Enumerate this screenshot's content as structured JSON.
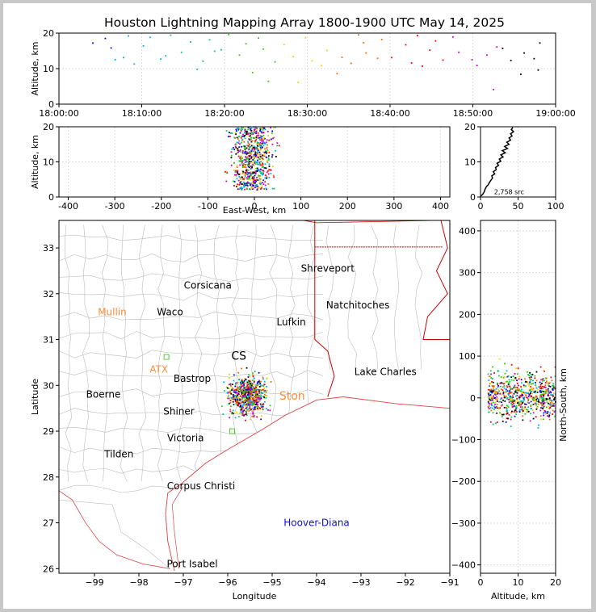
{
  "title": "Houston Lightning Mapping Array 1800-1900 UTC May 14, 2025",
  "colors": {
    "axis": "#000000",
    "grid": "#dddddd",
    "counties": "#bbbbbb",
    "state_lines": "#cc0000",
    "coast": "#dd4444",
    "city": "#000000",
    "station_orange": "#ff8c3a",
    "station_green": "#55cc33",
    "storm_label_blue": "#1111cc",
    "source_palette": [
      "#0000ff",
      "#00aaff",
      "#00cc66",
      "#33cc00",
      "#ffcc00",
      "#ff6600",
      "#ff0000",
      "#cc00cc",
      "#000000"
    ]
  },
  "chart_data": [
    {
      "id": "time_altitude",
      "type": "scatter",
      "xlabel": "",
      "ylabel": "Altitude, km",
      "x_tick_labels": [
        "18:00:00",
        "18:10:00",
        "18:20:00",
        "18:30:00",
        "18:40:00",
        "18:50:00",
        "19:00:00"
      ],
      "x_ticks_minutes": [
        0,
        10,
        20,
        30,
        40,
        50,
        60
      ],
      "xlim_minutes": [
        0,
        60
      ],
      "ylim": [
        0,
        20
      ],
      "y_ticks": [
        0,
        10,
        20
      ],
      "grid": true,
      "points": [
        [
          4.1,
          17.2
        ],
        [
          5.6,
          18.5
        ],
        [
          6.3,
          15.8
        ],
        [
          7.8,
          13.1
        ],
        [
          8.4,
          19.2
        ],
        [
          9.1,
          11.3
        ],
        [
          10.2,
          16.4
        ],
        [
          11.0,
          18.8
        ],
        [
          12.3,
          12.7
        ],
        [
          13.5,
          19.4
        ],
        [
          14.8,
          14.6
        ],
        [
          15.9,
          17.5
        ],
        [
          16.7,
          9.8
        ],
        [
          17.4,
          12.1
        ],
        [
          18.2,
          18.1
        ],
        [
          19.6,
          15.3
        ],
        [
          20.5,
          19.6
        ],
        [
          21.8,
          13.8
        ],
        [
          22.6,
          17.0
        ],
        [
          23.4,
          8.9
        ],
        [
          24.7,
          15.5
        ],
        [
          25.3,
          6.4
        ],
        [
          26.1,
          11.9
        ],
        [
          27.2,
          16.8
        ],
        [
          28.3,
          13.4
        ],
        [
          28.9,
          6.1
        ],
        [
          29.8,
          18.7
        ],
        [
          30.6,
          12.2
        ],
        [
          31.7,
          10.8
        ],
        [
          32.4,
          15.1
        ],
        [
          33.6,
          8.6
        ],
        [
          34.2,
          13.2
        ],
        [
          35.3,
          11.5
        ],
        [
          36.8,
          17.3
        ],
        [
          37.1,
          14.4
        ],
        [
          38.5,
          12.9
        ],
        [
          39.0,
          18.2
        ],
        [
          40.2,
          13.1
        ],
        [
          41.9,
          16.7
        ],
        [
          42.6,
          11.6
        ],
        [
          43.3,
          19.3
        ],
        [
          44.8,
          15.2
        ],
        [
          45.5,
          17.8
        ],
        [
          46.4,
          12.4
        ],
        [
          47.6,
          18.9
        ],
        [
          48.3,
          14.6
        ],
        [
          49.9,
          12.5
        ],
        [
          50.5,
          10.9
        ],
        [
          51.7,
          13.8
        ],
        [
          52.5,
          4.1
        ],
        [
          53.6,
          15.7
        ],
        [
          54.6,
          12.3
        ],
        [
          55.8,
          8.4
        ],
        [
          56.2,
          14.4
        ],
        [
          57.4,
          12.8
        ],
        [
          57.9,
          9.6
        ],
        [
          58.1,
          17.2
        ],
        [
          6.8,
          12.5
        ],
        [
          12.9,
          13.6
        ],
        [
          18.8,
          14.9
        ],
        [
          24.1,
          18.6
        ],
        [
          36.2,
          19.5
        ],
        [
          43.9,
          10.7
        ],
        [
          52.9,
          16.1
        ]
      ]
    },
    {
      "id": "east_west_altitude",
      "type": "scatter",
      "xlabel": "East-West, km",
      "ylabel": "Altitude, km",
      "x_ticks": [
        -400,
        -300,
        -200,
        -100,
        0,
        100,
        200,
        300,
        400
      ],
      "xlim": [
        -420,
        420
      ],
      "ylim": [
        0,
        20
      ],
      "y_ticks": [
        0,
        10,
        20
      ],
      "grid": true,
      "cluster": {
        "center_x": -5,
        "spread_x": 22,
        "min_alt": 2,
        "max_alt": 20,
        "count": 700
      }
    },
    {
      "id": "altitude_histogram",
      "type": "line",
      "xlim": [
        0,
        100
      ],
      "ylim": [
        0,
        20
      ],
      "x_ticks": [
        0,
        50,
        100
      ],
      "y_ticks": [
        0,
        10,
        20
      ],
      "annotation": "2,758 src",
      "curve": [
        [
          0,
          0.2
        ],
        [
          3,
          0.8
        ],
        [
          5,
          1.5
        ],
        [
          6,
          2.2
        ],
        [
          8,
          3.0
        ],
        [
          10,
          3.4
        ],
        [
          12,
          4.2
        ],
        [
          14,
          4.8
        ],
        [
          16,
          5.4
        ],
        [
          15,
          6.0
        ],
        [
          19,
          6.6
        ],
        [
          17,
          7.2
        ],
        [
          21,
          7.8
        ],
        [
          20,
          8.4
        ],
        [
          24,
          9.0
        ],
        [
          22,
          9.6
        ],
        [
          27,
          10.2
        ],
        [
          25,
          10.8
        ],
        [
          30,
          11.4
        ],
        [
          27,
          12.0
        ],
        [
          33,
          12.6
        ],
        [
          29,
          13.2
        ],
        [
          36,
          13.8
        ],
        [
          32,
          14.4
        ],
        [
          38,
          15.0
        ],
        [
          35,
          15.6
        ],
        [
          40,
          16.2
        ],
        [
          38,
          16.8
        ],
        [
          42,
          17.4
        ],
        [
          40,
          18.0
        ],
        [
          44,
          18.6
        ],
        [
          41,
          19.2
        ],
        [
          43,
          19.8
        ]
      ]
    },
    {
      "id": "plan_view",
      "type": "scatter",
      "xlabel": "Longitude",
      "ylabel": "Latitude",
      "x_ticks": [
        -99,
        -98,
        -97,
        -96,
        -95,
        -94,
        -93,
        -92,
        -91
      ],
      "xlim": [
        -99.8,
        -91.0
      ],
      "y_ticks": [
        26,
        27,
        28,
        29,
        30,
        31,
        32,
        33
      ],
      "ylim": [
        25.9,
        33.6
      ],
      "cluster": {
        "center_lon": -95.55,
        "center_lat": 29.78,
        "spread_lon": 0.2,
        "spread_lat": 0.2,
        "count": 700
      },
      "cities": [
        {
          "name": "Shreveport",
          "lon": -93.75,
          "lat": 32.55
        },
        {
          "name": "Corsicana",
          "lon": -96.45,
          "lat": 32.18
        },
        {
          "name": "Natchitoches",
          "lon": -93.07,
          "lat": 31.75
        },
        {
          "name": "Mullin",
          "lon": -98.6,
          "lat": 31.6,
          "color": "orange"
        },
        {
          "name": "Waco",
          "lon": -97.3,
          "lat": 31.6
        },
        {
          "name": "Lufkin",
          "lon": -94.57,
          "lat": 31.38
        },
        {
          "name": "ATX",
          "lon": -97.55,
          "lat": 30.35,
          "color": "orange"
        },
        {
          "name": "Bastrop",
          "lon": -96.8,
          "lat": 30.15
        },
        {
          "name": "Lake Charles",
          "lon": -92.45,
          "lat": 30.3
        },
        {
          "name": "Boerne",
          "lon": -98.8,
          "lat": 29.8
        },
        {
          "name": "Shiner",
          "lon": -97.1,
          "lat": 29.43
        },
        {
          "name": "Victoria",
          "lon": -96.95,
          "lat": 28.85
        },
        {
          "name": "Tilden",
          "lon": -98.45,
          "lat": 28.5
        },
        {
          "name": "Corpus Christi",
          "lon": -96.6,
          "lat": 27.8
        },
        {
          "name": "Hoover-Diana",
          "lon": -94.0,
          "lat": 27.0,
          "color": "blue"
        },
        {
          "name": "Port Isabel",
          "lon": -96.8,
          "lat": 26.1
        }
      ],
      "stations": [
        {
          "lon": -97.38,
          "lat": 30.62,
          "color": "green"
        },
        {
          "lon": -95.9,
          "lat": 29.0,
          "color": "green"
        }
      ],
      "storm_labels": [
        {
          "text": "CS",
          "lon": -95.75,
          "lat": 30.65,
          "color": "#000000"
        },
        {
          "text": "Ston",
          "lon": -94.55,
          "lat": 29.78,
          "color": "orange"
        }
      ]
    },
    {
      "id": "altitude_north_south",
      "type": "scatter",
      "xlabel": "Altitude, km",
      "ylabel": "North-South, km",
      "x_ticks": [
        0,
        10,
        20
      ],
      "xlim": [
        0,
        20
      ],
      "y_ticks": [
        -400,
        -300,
        -200,
        -100,
        0,
        100,
        200,
        300,
        400
      ],
      "ylim": [
        -420,
        425
      ],
      "grid": true,
      "cluster": {
        "center_y": 5,
        "spread_y": 28,
        "min_alt": 2,
        "max_alt": 20,
        "count": 700
      }
    }
  ]
}
